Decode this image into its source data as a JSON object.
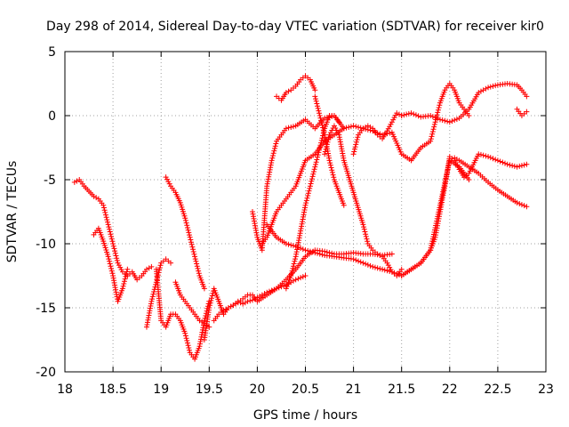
{
  "chart_data": {
    "type": "scatter",
    "title": "Day 298 of 2014, Sidereal Day-to-day VTEC variation (SDTVAR) for receiver kir0",
    "xlabel": "GPS time / hours",
    "ylabel": "SDTVAR / TECUs",
    "xlim": [
      18,
      23
    ],
    "ylim": [
      -20,
      5
    ],
    "xticks": [
      "18",
      "18.5",
      "19",
      "19.5",
      "20",
      "20.5",
      "21",
      "21.5",
      "22",
      "22.5",
      "23"
    ],
    "yticks": [
      "5",
      "0",
      "-5",
      "-10",
      "-15",
      "-20"
    ],
    "grid": true,
    "marker": "+",
    "color": "#ff0000",
    "series": [
      {
        "name": "s1",
        "x": [
          18.1,
          18.15,
          18.2,
          18.3,
          18.35,
          18.4,
          18.45,
          18.5,
          18.55,
          18.6,
          18.65,
          18.7,
          18.75,
          18.8,
          18.85,
          18.9
        ],
        "y": [
          -5.2,
          -5.0,
          -5.5,
          -6.3,
          -6.5,
          -7.0,
          -8.5,
          -10.0,
          -11.5,
          -12.2,
          -12.5,
          -12.2,
          -12.8,
          -12.5,
          -12.0,
          -11.8
        ]
      },
      {
        "name": "s2",
        "x": [
          18.3,
          18.35,
          18.4,
          18.45,
          18.5,
          18.55,
          18.6,
          18.65
        ],
        "y": [
          -9.3,
          -8.8,
          -9.8,
          -11.0,
          -12.5,
          -14.5,
          -13.5,
          -12.0
        ]
      },
      {
        "name": "s3",
        "x": [
          18.85,
          18.9,
          18.95,
          19.0,
          19.05,
          19.1
        ],
        "y": [
          -16.5,
          -14.5,
          -13.0,
          -11.5,
          -11.2,
          -11.5
        ]
      },
      {
        "name": "s4",
        "x": [
          19.05,
          19.1,
          19.15,
          19.2,
          19.25,
          19.3,
          19.35,
          19.4,
          19.45
        ],
        "y": [
          -4.8,
          -5.5,
          -6.0,
          -6.8,
          -8.0,
          -9.5,
          -11.0,
          -12.5,
          -13.5
        ]
      },
      {
        "name": "s5",
        "x": [
          18.95,
          19.0,
          19.05,
          19.1,
          19.15,
          19.2,
          19.25,
          19.3,
          19.35,
          19.4,
          19.45,
          19.5
        ],
        "y": [
          -12.0,
          -16.0,
          -16.5,
          -15.5,
          -15.5,
          -16.0,
          -17.0,
          -18.5,
          -19.0,
          -18.0,
          -16.0,
          -14.5
        ]
      },
      {
        "name": "s6",
        "x": [
          19.15,
          19.2,
          19.25,
          19.3,
          19.35,
          19.4,
          19.45,
          19.5
        ],
        "y": [
          -13.0,
          -14.0,
          -14.5,
          -15.0,
          -15.5,
          -16.0,
          -16.2,
          -16.5
        ]
      },
      {
        "name": "s7",
        "x": [
          19.45,
          19.5,
          19.55,
          19.6,
          19.65,
          19.7,
          19.75,
          19.8,
          19.85,
          19.9,
          19.95,
          20.0,
          20.1,
          20.2,
          20.3,
          20.4,
          20.5
        ],
        "y": [
          -17.5,
          -15.0,
          -13.5,
          -14.5,
          -15.5,
          -15.0,
          -14.8,
          -14.5,
          -14.7,
          -14.5,
          -14.4,
          -14.2,
          -13.8,
          -13.5,
          -13.2,
          -12.8,
          -12.5
        ]
      },
      {
        "name": "s8",
        "x": [
          19.55,
          19.6,
          19.65,
          19.7,
          19.75,
          19.8,
          19.85,
          19.9,
          19.95,
          20.0,
          20.1,
          20.2,
          20.3,
          20.4,
          20.5,
          20.6,
          20.7,
          20.8,
          20.9,
          21.0,
          21.1,
          21.2,
          21.3,
          21.4
        ],
        "y": [
          -16.0,
          -15.5,
          -15.2,
          -15.0,
          -14.8,
          -14.6,
          -14.3,
          -14.0,
          -14.0,
          -14.5,
          -14.0,
          -13.5,
          -12.8,
          -12.0,
          -11.0,
          -10.5,
          -10.6,
          -10.8,
          -10.8,
          -10.7,
          -10.8,
          -10.8,
          -10.9,
          -10.8
        ]
      },
      {
        "name": "s9",
        "x": [
          19.95,
          20.0,
          20.05,
          20.1,
          20.15,
          20.2,
          20.25,
          20.3,
          20.4,
          20.5,
          20.6,
          20.7,
          20.8,
          20.9,
          21.0,
          21.1,
          21.2,
          21.3,
          21.4,
          21.5,
          21.6,
          21.7,
          21.8,
          21.85,
          21.9,
          21.95,
          22.0,
          22.05,
          22.1,
          22.15,
          22.2
        ],
        "y": [
          -7.5,
          -9.5,
          -10.5,
          -5.5,
          -3.5,
          -2.0,
          -1.5,
          -1.0,
          -0.8,
          -0.3,
          -1.0,
          -0.2,
          0.0,
          -1.0,
          -0.8,
          -1.0,
          -1.2,
          -1.5,
          -1.3,
          -3.0,
          -3.5,
          -2.5,
          -2.0,
          -0.5,
          1.0,
          2.0,
          2.5,
          2.0,
          1.0,
          0.5,
          0.0
        ]
      },
      {
        "name": "s10",
        "x": [
          20.2,
          20.25,
          20.3,
          20.35,
          20.4,
          20.45,
          20.5,
          20.55,
          20.6
        ],
        "y": [
          1.5,
          1.2,
          1.8,
          2.0,
          2.3,
          2.8,
          3.1,
          2.8,
          2.0
        ]
      },
      {
        "name": "s11",
        "x": [
          20.05,
          20.1,
          20.15,
          20.2,
          20.25,
          20.3,
          20.35,
          20.4,
          20.45,
          20.5,
          20.6,
          20.7,
          20.8,
          20.9
        ],
        "y": [
          -10.0,
          -9.5,
          -8.5,
          -7.5,
          -7.0,
          -6.5,
          -6.0,
          -5.5,
          -4.5,
          -3.5,
          -3.0,
          -2.0,
          -1.5,
          -1.0
        ]
      },
      {
        "name": "s12",
        "x": [
          20.6,
          20.65,
          20.7,
          20.75,
          20.8,
          20.85,
          20.9
        ],
        "y": [
          1.5,
          0.0,
          -1.5,
          -3.5,
          -5.0,
          -6.0,
          -7.0
        ]
      },
      {
        "name": "s13",
        "x": [
          20.3,
          20.35,
          20.4,
          20.45,
          20.5,
          20.55,
          20.6,
          20.65,
          20.7,
          20.75,
          20.8,
          20.85
        ],
        "y": [
          -13.5,
          -12.5,
          -11.0,
          -9.0,
          -7.0,
          -5.5,
          -4.0,
          -2.5,
          -1.0,
          0.0,
          0.0,
          -0.5
        ]
      },
      {
        "name": "s14",
        "x": [
          20.1,
          20.2,
          20.3,
          20.4,
          20.5,
          20.6,
          20.7,
          20.8,
          20.9,
          21.0,
          21.1,
          21.2,
          21.3,
          21.4,
          21.5,
          21.6,
          21.7,
          21.8,
          21.9,
          22.0,
          22.1,
          22.2
        ],
        "y": [
          -8.5,
          -9.5,
          -10.0,
          -10.2,
          -10.5,
          -10.7,
          -10.9,
          -11.0,
          -11.1,
          -11.2,
          -11.5,
          -11.8,
          -12.0,
          -12.2,
          -12.5,
          -12.0,
          -11.5,
          -10.5,
          -7.0,
          -3.5,
          -4.0,
          -5.0
        ]
      },
      {
        "name": "s15",
        "x": [
          20.7,
          20.75,
          20.8,
          20.85,
          20.9,
          21.0,
          21.1,
          21.15,
          21.2,
          21.25,
          21.3,
          21.35,
          21.4,
          21.45,
          21.5
        ],
        "y": [
          -3.0,
          -1.5,
          -0.8,
          -1.5,
          -3.5,
          -6.0,
          -8.5,
          -10.0,
          -10.5,
          -10.8,
          -11.0,
          -11.5,
          -12.2,
          -12.5,
          -12.0
        ]
      },
      {
        "name": "s16",
        "x": [
          21.0,
          21.05,
          21.1,
          21.15,
          21.2,
          21.25,
          21.3,
          21.35,
          21.4,
          21.45,
          21.5
        ],
        "y": [
          -3.0,
          -1.5,
          -1.0,
          -0.8,
          -1.0,
          -1.5,
          -1.8,
          -1.2,
          -0.5,
          0.2,
          0.0
        ]
      },
      {
        "name": "s17",
        "x": [
          21.5,
          21.6,
          21.7,
          21.8,
          21.9,
          22.0,
          22.1,
          22.2,
          22.3,
          22.4,
          22.5,
          22.6,
          22.7,
          22.75,
          22.8
        ],
        "y": [
          0.0,
          0.2,
          -0.1,
          0.0,
          -0.3,
          -0.5,
          -0.2,
          0.5,
          1.8,
          2.2,
          2.4,
          2.5,
          2.4,
          2.0,
          1.5
        ]
      },
      {
        "name": "s18",
        "x": [
          22.7,
          22.75,
          22.8
        ],
        "y": [
          0.5,
          0.0,
          0.3
        ]
      },
      {
        "name": "s19",
        "x": [
          21.5,
          21.6,
          21.7,
          21.8,
          21.85,
          21.9,
          21.95,
          22.0,
          22.05,
          22.1,
          22.15,
          22.2,
          22.3,
          22.4,
          22.5,
          22.6,
          22.7,
          22.8
        ],
        "y": [
          -12.5,
          -12.0,
          -11.5,
          -10.5,
          -9.5,
          -7.5,
          -5.5,
          -3.2,
          -3.5,
          -4.2,
          -4.8,
          -4.5,
          -3.0,
          -3.2,
          -3.5,
          -3.8,
          -4.0,
          -3.8
        ]
      },
      {
        "name": "s20",
        "x": [
          22.05,
          22.1,
          22.2,
          22.3,
          22.4,
          22.5,
          22.6,
          22.7,
          22.8
        ],
        "y": [
          -3.3,
          -3.5,
          -4.0,
          -4.5,
          -5.2,
          -5.8,
          -6.3,
          -6.8,
          -7.1
        ]
      }
    ]
  }
}
